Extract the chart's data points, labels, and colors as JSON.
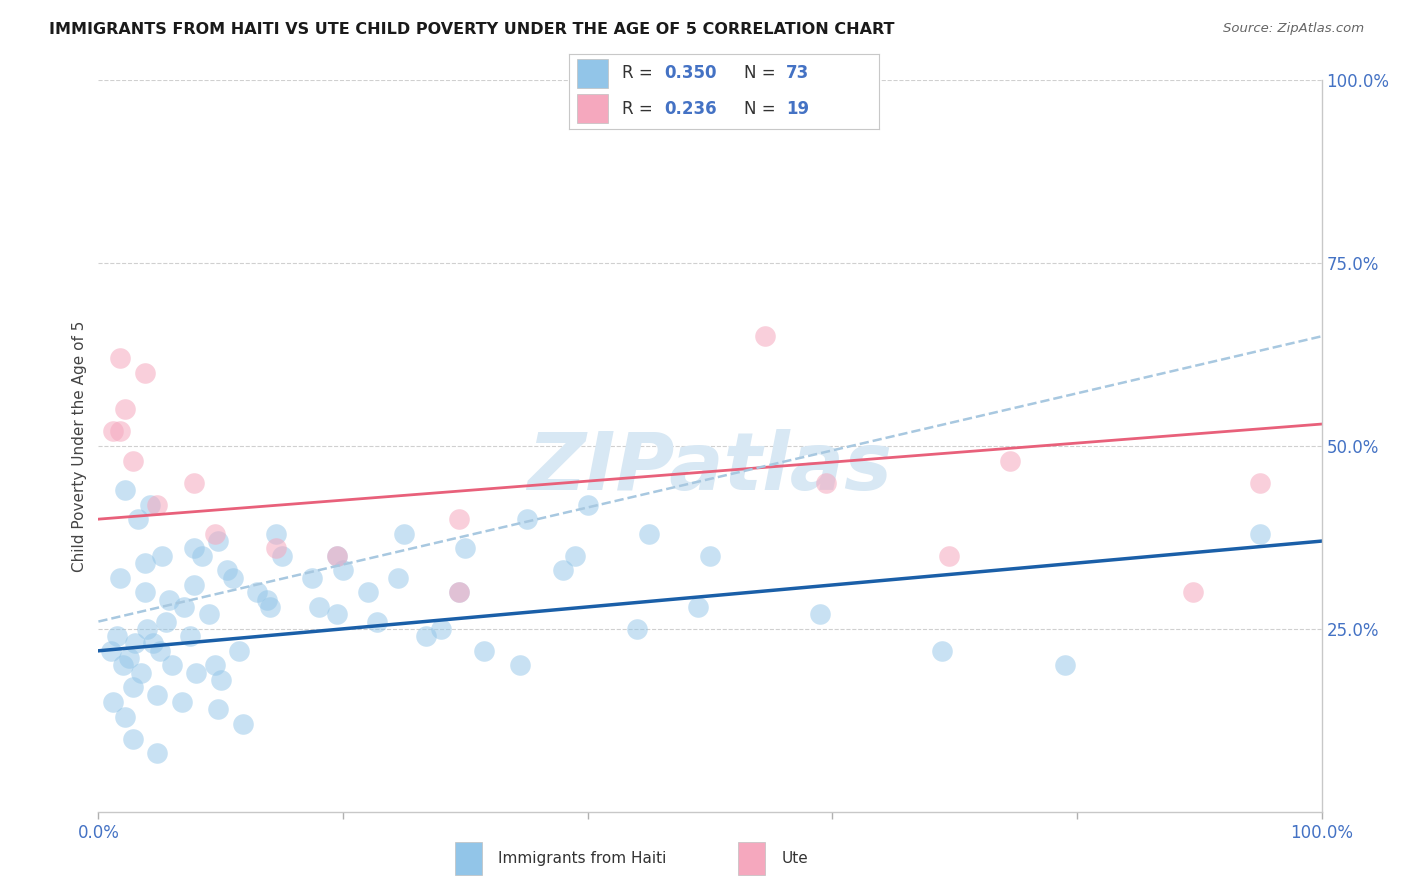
{
  "title": "IMMIGRANTS FROM HAITI VS UTE CHILD POVERTY UNDER THE AGE OF 5 CORRELATION CHART",
  "source": "Source: ZipAtlas.com",
  "ylabel": "Child Poverty Under the Age of 5",
  "legend_label1": "Immigrants from Haiti",
  "legend_label2": "Ute",
  "r1": "0.350",
  "n1": "73",
  "r2": "0.236",
  "n2": "19",
  "color_blue": "#92C5E8",
  "color_pink": "#F5A8BE",
  "line_blue": "#1A5FA8",
  "line_pink": "#E8607A",
  "line_dashed_color": "#A8C8E0",
  "watermark": "ZIPatlas",
  "watermark_color": "#D8E8F4",
  "blue_x": [
    0.2,
    0.3,
    0.5,
    0.6,
    0.8,
    1.0,
    0.4,
    0.7,
    1.1,
    1.3,
    0.9,
    1.5,
    2.0,
    2.5,
    3.0,
    2.2,
    1.8,
    3.5,
    4.0,
    4.5,
    5.0,
    3.8,
    2.8,
    0.1,
    0.15,
    0.25,
    0.35,
    0.45,
    0.55,
    0.75,
    0.95,
    1.15,
    1.4,
    0.28,
    0.48,
    0.68,
    0.98,
    1.18,
    0.38,
    0.58,
    0.78,
    1.05,
    1.38,
    1.95,
    2.28,
    2.68,
    3.15,
    3.45,
    0.18,
    0.38,
    0.78,
    0.98,
    1.45,
    1.95,
    2.45,
    2.95,
    0.12,
    0.22,
    4.4,
    4.9,
    5.9,
    6.9,
    7.9,
    0.28,
    0.48,
    0.22,
    0.32,
    0.42,
    0.52,
    0.85,
    1.75,
    3.9,
    9.5
  ],
  "blue_y": [
    20,
    23,
    22,
    20,
    19,
    18,
    25,
    28,
    32,
    30,
    27,
    35,
    33,
    38,
    36,
    30,
    28,
    40,
    42,
    38,
    35,
    33,
    25,
    22,
    24,
    21,
    19,
    23,
    26,
    24,
    20,
    22,
    28,
    17,
    16,
    15,
    14,
    12,
    30,
    29,
    31,
    33,
    29,
    27,
    26,
    24,
    22,
    20,
    32,
    34,
    36,
    37,
    38,
    35,
    32,
    30,
    15,
    13,
    25,
    28,
    27,
    22,
    20,
    10,
    8,
    44,
    40,
    42,
    35,
    35,
    32,
    35,
    38
  ],
  "pink_x": [
    0.12,
    0.22,
    0.18,
    0.28,
    0.48,
    0.78,
    0.95,
    1.45,
    1.95,
    2.95,
    0.38,
    5.45,
    5.95,
    6.95,
    7.45,
    8.95,
    2.95,
    0.18,
    9.5
  ],
  "pink_y": [
    52,
    55,
    52,
    48,
    42,
    45,
    38,
    36,
    35,
    40,
    60,
    65,
    45,
    35,
    48,
    30,
    30,
    62,
    45
  ],
  "x_scale": 10,
  "xlim": [
    0,
    100
  ],
  "ylim": [
    0,
    100
  ],
  "blue_line_x0": 0,
  "blue_line_y0": 22,
  "blue_line_x1": 100,
  "blue_line_y1": 37,
  "pink_line_x0": 0,
  "pink_line_y0": 40,
  "pink_line_x1": 100,
  "pink_line_y1": 53,
  "dash_line_x0": 0,
  "dash_line_y0": 26,
  "dash_line_x1": 100,
  "dash_line_y1": 65,
  "figsize": [
    14.06,
    8.92
  ],
  "dpi": 100
}
